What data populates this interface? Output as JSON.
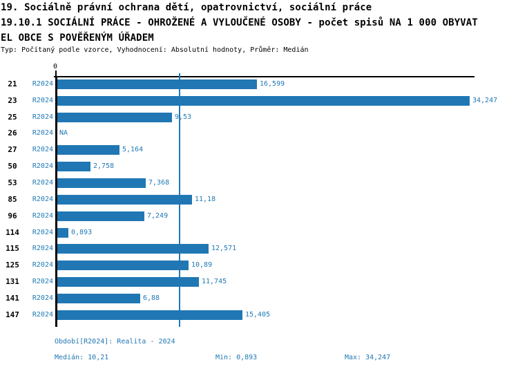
{
  "header": {
    "line1": "19. Sociálně právní ochrana dětí, opatrovnictví, sociální práce",
    "line2": "19.10.1 SOCIÁLNÍ PRÁCE - OHROŽENÉ A VYLOUČENÉ OSOBY - počet spisů NA 1 000 OBYVAT",
    "line3": "EL OBCE S POVĚŘENÝM ÚŘADEM",
    "meta": "Typ: Počítaný podle vzorce, Vyhodnocení: Absolutní hodnoty, Průměr: Medián"
  },
  "chart_data": {
    "type": "bar",
    "orientation": "horizontal",
    "title": "19.10.1 SOCIÁLNÍ PRÁCE - OHROŽENÉ A VYLOUČENÉ OSOBY - počet spisů NA 1 000 OBYVATEL OBCE S POVĚŘENÝM ÚŘADEM",
    "xlabel": "",
    "ylabel": "",
    "xlim": [
      0,
      34.247
    ],
    "x_tick_labels": [
      "0"
    ],
    "grid": false,
    "legend": "none",
    "series_name": "R2024",
    "categories": [
      "21",
      "23",
      "25",
      "26",
      "27",
      "50",
      "53",
      "85",
      "96",
      "114",
      "115",
      "125",
      "131",
      "141",
      "147"
    ],
    "values": [
      16.599,
      34.247,
      9.53,
      null,
      5.164,
      2.758,
      7.368,
      11.18,
      7.249,
      0.893,
      12.571,
      10.89,
      11.745,
      6.88,
      15.405
    ],
    "value_labels": [
      "16,599",
      "34,247",
      "9,53",
      "NA",
      "5,164",
      "2,758",
      "7,368",
      "11,18",
      "7,249",
      "0,893",
      "12,571",
      "10,89",
      "11,745",
      "6,88",
      "15,405"
    ],
    "median_value": 10.21,
    "median_line": true,
    "min": 0.893,
    "max": 34.247
  },
  "footer": {
    "period": "Období[R2024]: Realita - 2024",
    "median": "Medián: 10,21",
    "min": "Min: 0,893",
    "max": "Max: 34,247"
  },
  "colors": {
    "bar": "#2077b4",
    "blue_text": "#1f77b4",
    "axis": "#000000"
  }
}
